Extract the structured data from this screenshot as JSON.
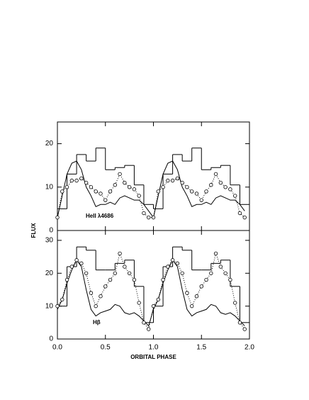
{
  "chart_data": [
    {
      "type": "line",
      "label": "HeII λ4686",
      "ylabel": "FLUX",
      "xlim": [
        0,
        2
      ],
      "ylim": [
        0,
        25
      ],
      "xticks": [
        0,
        0.5,
        1,
        1.5,
        2
      ],
      "yticks": [
        0,
        10,
        20
      ],
      "series": [
        {
          "style": "step",
          "color": "#000000",
          "bins": [
            0,
            0.1,
            0.2,
            0.3,
            0.4,
            0.5,
            0.6,
            0.7,
            0.8,
            0.9,
            1,
            1.1,
            1.2,
            1.3,
            1.4,
            1.5,
            1.6,
            1.7,
            1.8,
            1.9,
            2
          ],
          "values": [
            5,
            13,
            17.5,
            16,
            19,
            14,
            14.5,
            15,
            10.5,
            6,
            5,
            13,
            17.5,
            16,
            19,
            14,
            14.5,
            15,
            10.5,
            6
          ]
        },
        {
          "style": "line",
          "color": "#000000",
          "x": [
            0,
            0.05,
            0.1,
            0.15,
            0.2,
            0.25,
            0.3,
            0.35,
            0.4,
            0.45,
            0.5,
            0.55,
            0.6,
            0.65,
            0.7,
            0.75,
            0.8,
            0.85,
            0.9,
            0.95,
            1,
            1.05,
            1.1,
            1.15,
            1.2,
            1.25,
            1.3,
            1.35,
            1.4,
            1.45,
            1.5,
            1.55,
            1.6,
            1.65,
            1.7,
            1.75,
            1.8,
            1.85,
            1.9,
            1.95
          ],
          "values": [
            3,
            8,
            13,
            15.5,
            16,
            14,
            10,
            8,
            5.5,
            6,
            6,
            6.5,
            6,
            7.5,
            8,
            7.5,
            7,
            7,
            6,
            4.5,
            3,
            8,
            13,
            15.5,
            16,
            14,
            10,
            8,
            5.5,
            6,
            6,
            6.5,
            6,
            7.5,
            8,
            7.5,
            7,
            7,
            6,
            4.5
          ]
        },
        {
          "style": "points",
          "color": "#000000",
          "x": [
            0,
            0.05,
            0.1,
            0.15,
            0.2,
            0.25,
            0.3,
            0.35,
            0.4,
            0.45,
            0.5,
            0.55,
            0.6,
            0.65,
            0.7,
            0.75,
            0.8,
            0.85,
            0.9,
            0.95,
            1,
            1.05,
            1.1,
            1.15,
            1.2,
            1.25,
            1.3,
            1.35,
            1.4,
            1.45,
            1.5,
            1.55,
            1.6,
            1.65,
            1.7,
            1.75,
            1.8,
            1.85,
            1.9,
            1.95
          ],
          "values": [
            3,
            9,
            10,
            11.5,
            11.5,
            12,
            11,
            10,
            9,
            8.5,
            7,
            9,
            10.5,
            13,
            11,
            10,
            9.5,
            8,
            4,
            3,
            3,
            9,
            10,
            11.5,
            11.5,
            12,
            11,
            10,
            9,
            8.5,
            7,
            9,
            10.5,
            13,
            11,
            10,
            9.5,
            8,
            4,
            3
          ]
        }
      ]
    },
    {
      "type": "line",
      "label": "Hβ",
      "xlabel": "ORBITAL PHASE",
      "xlim": [
        0,
        2
      ],
      "ylim": [
        0,
        33
      ],
      "xticks": [
        {
          "value": 0,
          "label": "0.0"
        },
        0.5,
        {
          "value": 1,
          "label": "1.0"
        },
        1.5,
        {
          "value": 2,
          "label": "2.0"
        }
      ],
      "yticks": [
        0,
        10,
        20,
        30
      ],
      "series": [
        {
          "style": "step",
          "color": "#000000",
          "bins": [
            0,
            0.1,
            0.2,
            0.3,
            0.4,
            0.5,
            0.6,
            0.7,
            0.8,
            0.9,
            1,
            1.1,
            1.2,
            1.3,
            1.4,
            1.5,
            1.6,
            1.7,
            1.8,
            1.9,
            2
          ],
          "values": [
            10,
            22,
            28,
            27,
            21,
            21,
            23,
            24,
            16,
            5,
            10,
            22,
            28,
            27,
            21,
            21,
            23,
            24,
            16,
            5
          ]
        },
        {
          "style": "line",
          "color": "#000000",
          "x": [
            0,
            0.05,
            0.1,
            0.15,
            0.2,
            0.25,
            0.3,
            0.35,
            0.4,
            0.45,
            0.5,
            0.55,
            0.6,
            0.65,
            0.7,
            0.75,
            0.8,
            0.85,
            0.9,
            0.95,
            1,
            1.05,
            1.1,
            1.15,
            1.2,
            1.25,
            1.3,
            1.35,
            1.4,
            1.45,
            1.5,
            1.55,
            1.6,
            1.65,
            1.7,
            1.75,
            1.8,
            1.85,
            1.9,
            1.95
          ],
          "values": [
            9,
            12,
            17,
            21,
            24,
            22,
            15,
            9,
            7,
            8,
            8.5,
            9,
            10.5,
            10,
            8,
            7.5,
            8,
            7,
            5.5,
            4,
            9,
            12,
            17,
            21,
            24,
            22,
            15,
            9,
            7,
            8,
            8.5,
            9,
            10.5,
            10,
            8,
            7.5,
            8,
            7,
            5.5,
            4
          ]
        },
        {
          "style": "points",
          "color": "#000000",
          "x": [
            0,
            0.05,
            0.1,
            0.15,
            0.2,
            0.25,
            0.3,
            0.35,
            0.4,
            0.45,
            0.5,
            0.55,
            0.6,
            0.65,
            0.7,
            0.75,
            0.8,
            0.85,
            0.9,
            0.95,
            1,
            1.05,
            1.1,
            1.15,
            1.2,
            1.25,
            1.3,
            1.35,
            1.4,
            1.45,
            1.5,
            1.55,
            1.6,
            1.65,
            1.7,
            1.75,
            1.8,
            1.85,
            1.9,
            1.95
          ],
          "values": [
            10,
            12,
            18,
            22,
            24,
            23,
            20,
            14,
            10,
            13,
            16,
            18,
            20,
            26,
            22,
            20,
            18,
            11,
            5,
            3,
            10,
            12,
            18,
            22,
            24,
            23,
            20,
            14,
            10,
            13,
            16,
            18,
            20,
            26,
            22,
            20,
            18,
            11,
            5,
            3
          ]
        }
      ]
    }
  ]
}
